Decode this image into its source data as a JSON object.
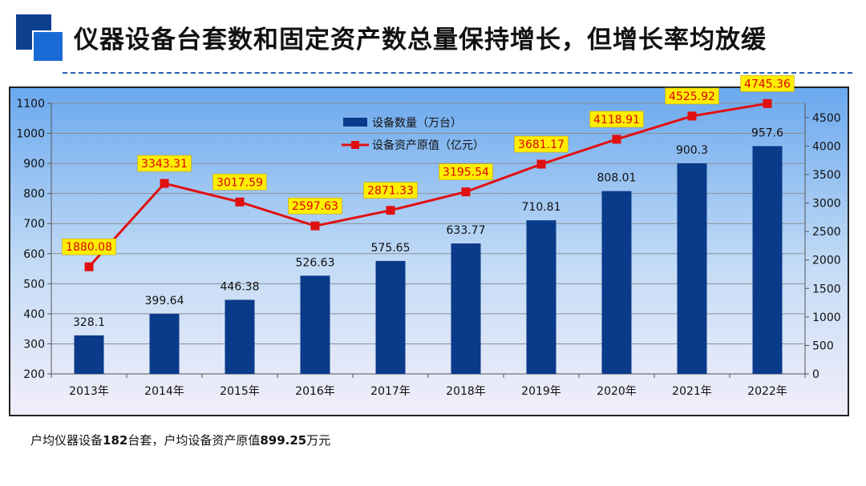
{
  "header": {
    "title": "仪器设备台套数和固定资产数总量保持增长，但增长率均放缓"
  },
  "footer": {
    "prefix": "户均仪器设备",
    "devices": "182",
    "mid": "台套，户均设备资产原值",
    "value": "899.25",
    "unit": "万元"
  },
  "colors": {
    "bar": "#0a3a8a",
    "line": "#e01010",
    "label_bg": "#ffee00",
    "accent": "#1a6ad6"
  },
  "chart_data": {
    "type": "bar",
    "categories": [
      "2013年",
      "2014年",
      "2015年",
      "2016年",
      "2017年",
      "2018年",
      "2019年",
      "2020年",
      "2021年",
      "2022年"
    ],
    "series": [
      {
        "name": "设备数量（万台）",
        "type": "bar",
        "axis": "left",
        "values": [
          328.1,
          399.64,
          446.38,
          526.63,
          575.65,
          633.77,
          710.81,
          808.01,
          900.3,
          957.6
        ],
        "labels": [
          "328.1",
          "399.64",
          "446.38",
          "526.63",
          "575.65",
          "633.77",
          "710.81",
          "808.01",
          "900.3",
          "957.6"
        ]
      },
      {
        "name": "设备资产原值（亿元）",
        "type": "line",
        "axis": "right",
        "values": [
          1880.08,
          3343.31,
          3017.59,
          2597.63,
          2871.33,
          3195.54,
          3681.17,
          4118.91,
          4525.92,
          4745.36
        ],
        "labels": [
          "1880.08",
          "3343.31",
          "3017.59",
          "2597.63",
          "2871.33",
          "3195.54",
          "3681.17",
          "4118.91",
          "4525.92",
          "4745.36"
        ]
      }
    ],
    "y_left": {
      "min": 200,
      "max": 1100,
      "ticks": [
        "200",
        "300",
        "400",
        "500",
        "600",
        "700",
        "800",
        "900",
        "1000",
        "1100"
      ]
    },
    "y_right": {
      "min": 0,
      "max": 4750,
      "ticks": [
        "0",
        "500",
        "1000",
        "1500",
        "2000",
        "2500",
        "3000",
        "3500",
        "4000",
        "4500"
      ]
    },
    "grid": true,
    "legend_position": "top-center"
  }
}
